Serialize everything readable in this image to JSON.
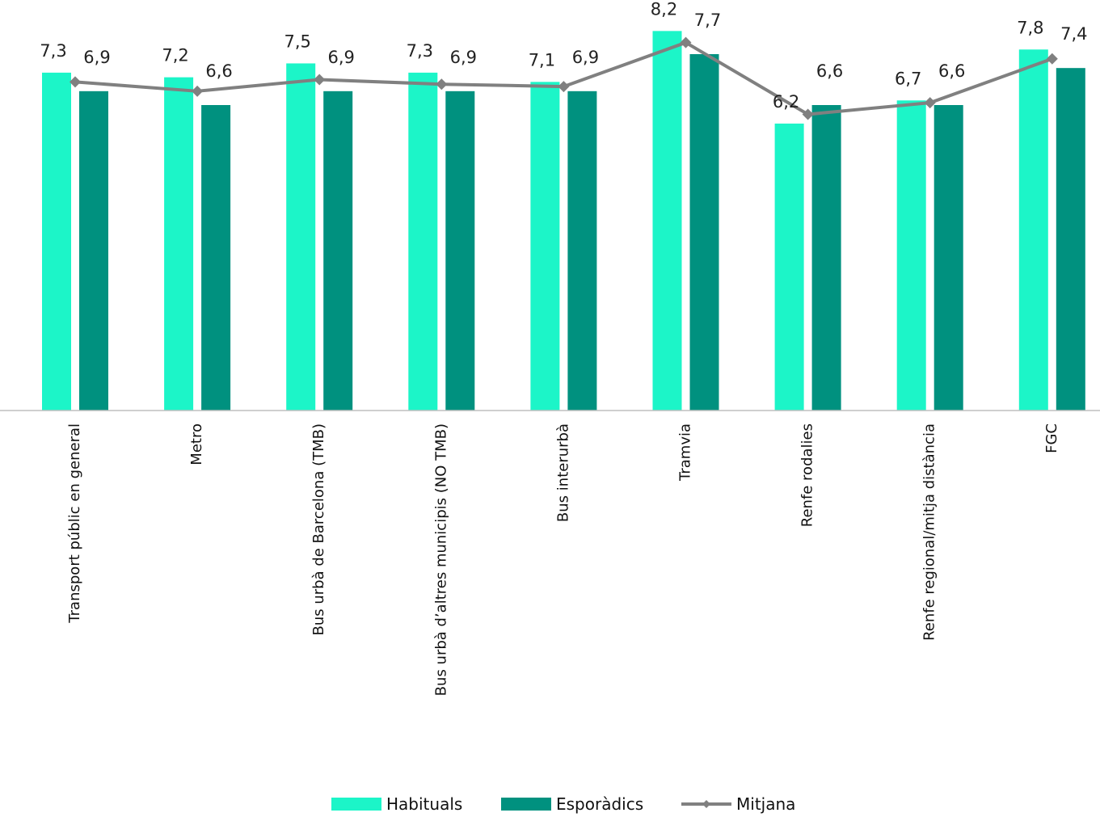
{
  "chart_data": {
    "type": "bar",
    "title": "",
    "xlabel": "",
    "ylabel": "",
    "ylim": [
      0,
      8.8
    ],
    "grid": false,
    "legend_position": "bottom",
    "categories": [
      "Transport públic en general",
      "Metro",
      "Bus urbà de Barcelona (TMB)",
      "Bus urbà d’altres municipis (NO TMB)",
      "Bus interurbà",
      "Tramvia",
      "Renfe rodalies",
      "Renfe regional/mitja distància",
      "FGC"
    ],
    "series": [
      {
        "name": "Habituals",
        "type": "bar",
        "color": "#1CF5C8",
        "values": [
          7.3,
          7.2,
          7.5,
          7.3,
          7.1,
          8.2,
          6.2,
          6.7,
          7.8
        ],
        "labels": [
          "7,3",
          "7,2",
          "7,5",
          "7,3",
          "7,1",
          "8,2",
          "6,2",
          "6,7",
          "7,8"
        ]
      },
      {
        "name": "Esporàdics",
        "type": "bar",
        "color": "#00917F",
        "values": [
          6.9,
          6.6,
          6.9,
          6.9,
          6.9,
          7.7,
          6.6,
          6.6,
          7.4
        ],
        "labels": [
          "6,9",
          "6,6",
          "6,9",
          "6,9",
          "6,9",
          "7,7",
          "6,6",
          "6,6",
          "7,4"
        ]
      },
      {
        "name": "Mitjana",
        "type": "line",
        "color": "#808080",
        "values": [
          7.1,
          6.9,
          7.15,
          7.05,
          7.0,
          7.95,
          6.4,
          6.65,
          7.6
        ]
      }
    ]
  }
}
